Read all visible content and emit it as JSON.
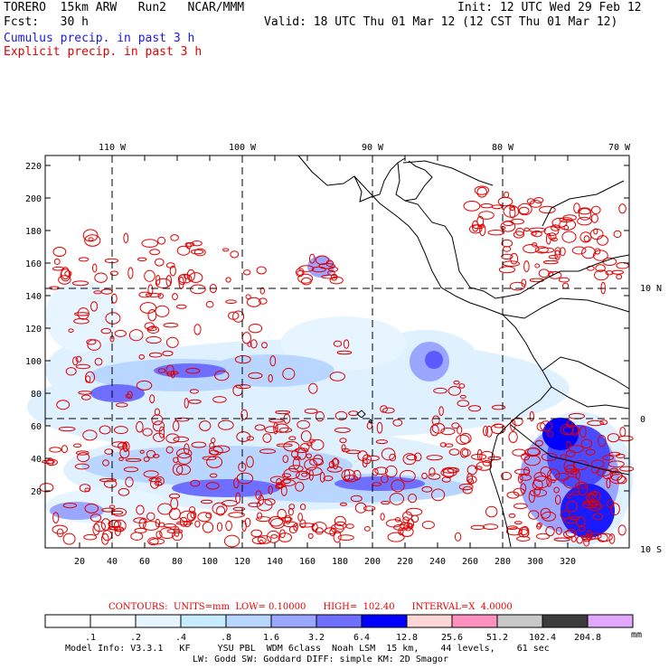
{
  "header": {
    "model": "TORERO  15km ARW   Run2   NCAR/MMM",
    "init": "Init: 12 UTC Wed 29 Feb 12",
    "fcst": "Fcst:   30 h",
    "valid": "Valid: 18 UTC Thu 01 Mar 12 (12 CST Thu 01 Mar 12)",
    "line_cumulus": "Cumulus precip. in past 3 h",
    "line_explicit": "Explicit precip. in past 3 h"
  },
  "map": {
    "top_lon_labels": [
      "110 W",
      "100 W",
      "90 W",
      "80 W",
      "70 W"
    ],
    "right_lat_labels": [
      "10 N",
      "0",
      "10 S"
    ],
    "y_ticks": [
      "220",
      "200",
      "180",
      "160",
      "140",
      "120",
      "100",
      "80",
      "60",
      "40",
      "20"
    ],
    "x_ticks": [
      "20",
      "40",
      "60",
      "80",
      "100",
      "120",
      "140",
      "160",
      "180",
      "200",
      "220",
      "240",
      "260",
      "280",
      "300",
      "320"
    ],
    "colors": {
      "contour": "#e00000",
      "grid": "#000000",
      "coast": "#000000"
    }
  },
  "contours_note": "CONTOURS:  UNITS=mm  LOW= 0.10000      HIGH=  102.40      INTERVAL=X  4.0000",
  "colorbar": {
    "labels": [
      ".1",
      ".2",
      ".4",
      ".8",
      "1.6",
      "3.2",
      "6.4",
      "12.8",
      "25.6",
      "51.2",
      "102.4",
      "204.8"
    ],
    "unit": "mm",
    "colors": [
      "#ffffff",
      "#ffffff",
      "#e6f5ff",
      "#c8ecff",
      "#b8d6ff",
      "#9aa6ff",
      "#6e6eff",
      "#0000ff",
      "#ffd6d6",
      "#ff90c0",
      "#c8c8c8",
      "#3c3c3c",
      "#e2a8ff"
    ]
  },
  "footer": {
    "line1": "Model Info: V3.3.1   KF     YSU PBL  WDM 6class  Noah LSM  15 km,    44 levels,    61 sec",
    "line2": "LW: Godd SW: Goddard DIFF: simple KM: 2D Smagor"
  }
}
